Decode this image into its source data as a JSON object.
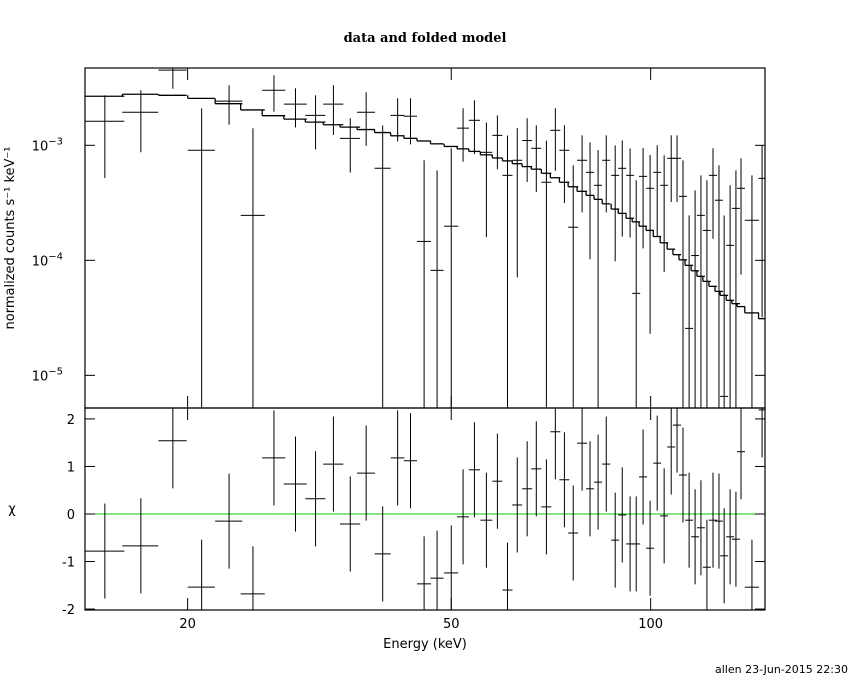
{
  "chart_data": [
    {
      "type": "errorbar",
      "title": "data and folded model",
      "ylabel": "normalized counts s⁻¹ keV⁻¹",
      "xscale": "log",
      "yscale": "log",
      "xlim": [
        14,
        148.8
      ],
      "ylim": [
        5.2e-06,
        0.0047
      ],
      "yticks": [
        {
          "value": 1e-05,
          "label": "10",
          "exponent": "−5"
        },
        {
          "value": 0.0001,
          "label": "10",
          "exponent": "−4"
        },
        {
          "value": 0.001,
          "label": "10",
          "exponent": "−3"
        }
      ],
      "x": [
        15.0,
        17.0,
        19.0,
        21.0,
        23.1,
        25.1,
        27.0,
        29.1,
        31.2,
        33.2,
        35.2,
        37.2,
        39.4,
        41.5,
        43.4,
        45.5,
        47.6,
        50.0,
        52.1,
        54.2,
        56.5,
        58.7,
        60.8,
        62.9,
        65.1,
        67.2,
        69.6,
        71.8,
        74.1,
        76.4,
        78.8,
        81.0,
        83.3,
        85.7,
        88.4,
        90.6,
        93.1,
        95.1,
        97.4,
        99.8,
        102.3,
        104.8,
        107.4,
        109.6,
        111.9,
        114.3,
        116.7,
        119.1,
        121.6,
        124.2,
        126.8,
        129.1,
        131.8,
        134.5,
        136.9,
        142.2,
        147.3
      ],
      "xerr": [
        1.05,
        1.06,
        0.93,
        0.99,
        1.09,
        1.05,
        1.08,
        1.16,
        1.09,
        1.16,
        1.23,
        1.16,
        1.1,
        1.0,
        0.99,
        1.11,
        1.08,
        1.22,
        1.08,
        1.06,
        1.17,
        1.02,
        1.06,
        1.09,
        1.14,
        1.17,
        1.21,
        1.24,
        1.28,
        1.33,
        1.37,
        1.12,
        1.16,
        1.2,
        1.23,
        1.26,
        1.29,
        1.32,
        1.36,
        1.38,
        1.4,
        1.45,
        1.5,
        1.55,
        1.55,
        1.6,
        1.6,
        1.65,
        1.7,
        1.75,
        1.75,
        1.8,
        1.8,
        1.9,
        1.9,
        3.5,
        1.8
      ],
      "data": {
        "color": "#000000",
        "values": [
          0.00162,
          0.00194,
          0.0045,
          0.000905,
          0.00242,
          0.000246,
          0.00301,
          0.00228,
          0.00182,
          0.00228,
          0.00115,
          0.00194,
          0.000631,
          0.00182,
          0.00179,
          0.000146,
          8.18e-05,
          0.000198,
          0.00141,
          0.00165,
          0.000869,
          0.00122,
          0.000548,
          0.000741,
          0.0011,
          0.000942,
          0.000477,
          0.00135,
          0.000905,
          0.000194,
          0.000741,
          0.000582,
          0.000449,
          0.000741,
          0.000548,
          0.000631,
          0.000548,
          5.16e-05,
          0.000537,
          0.000423,
          0.000582,
          0.000449,
          0.000771,
          0.000771,
          0.00036,
          2.56e-05,
          0.00011,
          0.000246,
          0.000182,
          0.000548,
          0.000333,
          6.56e-06,
          0.000135,
          0.000283,
          0.000423,
          0.000223,
          0.000516
        ],
        "errors": [
          0.0011,
          0.00107,
          0.0014,
          0.00119,
          0.00091,
          0.00116,
          0.00105,
          0.00085,
          0.0009,
          0.00105,
          0.00057,
          0.00095,
          0.00086,
          0.00074,
          0.00077,
          0.000595,
          0.000524,
          0.000744,
          0.00069,
          0.00081,
          0.00071,
          0.0006,
          0.00067,
          0.00067,
          0.00062,
          0.00055,
          0.00062,
          0.00075,
          0.00059,
          0.000476,
          0.00048,
          0.00048,
          0.00046,
          0.00048,
          0.00045,
          0.00047,
          0.00039,
          0.000445,
          0.00041,
          0.0004,
          0.00042,
          0.00037,
          0.00045,
          0.00045,
          0.00038,
          0.00022,
          0.000296,
          0.000302,
          0.000315,
          0.000394,
          0.000337,
          0.000239,
          0.000314,
          0.000323,
          0.000348,
          0.000325,
          0.000484
        ]
      },
      "model": {
        "color": "#000000",
        "values": [
          0.00267,
          0.00278,
          0.00272,
          0.00256,
          0.0023,
          0.00203,
          0.00181,
          0.00169,
          0.00159,
          0.00151,
          0.00144,
          0.00137,
          0.00129,
          0.00121,
          0.00115,
          0.00109,
          0.00103,
          0.000977,
          0.000931,
          0.000885,
          0.000826,
          0.000776,
          0.000732,
          0.000692,
          0.000653,
          0.00062,
          0.000571,
          0.000522,
          0.000477,
          0.000436,
          0.000398,
          0.000367,
          0.000339,
          0.00031,
          0.000279,
          0.000256,
          0.000232,
          0.000216,
          0.000198,
          0.000182,
          0.000161,
          0.000142,
          0.000125,
          0.000112,
          0.000101,
          9.04e-05,
          8.11e-05,
          7.26e-05,
          6.56e-05,
          5.94e-05,
          5.37e-05,
          4.96e-05,
          4.49e-05,
          4.2e-05,
          3.96e-05,
          3.49e-05,
          3.11e-05
        ]
      }
    },
    {
      "type": "residual",
      "ylabel": "χ",
      "xlabel": "Energy (keV)",
      "xscale": "log",
      "xlim": [
        14,
        148.8
      ],
      "xticks": [
        20,
        50,
        100
      ],
      "ylim": [
        -2.02,
        2.23
      ],
      "yticks": [
        -2,
        -1,
        0,
        1,
        2
      ],
      "reference_line": {
        "value": 0,
        "color": "#00cc00"
      },
      "color": "#000000",
      "values": [
        -0.78,
        -0.67,
        1.54,
        -1.54,
        -0.15,
        -1.68,
        1.18,
        0.63,
        0.32,
        1.05,
        -0.21,
        0.86,
        -0.84,
        1.18,
        1.12,
        -1.47,
        -1.35,
        -1.24,
        -0.06,
        0.93,
        -0.13,
        0.69,
        -1.6,
        0.19,
        0.53,
        0.95,
        0.15,
        1.73,
        0.72,
        -0.4,
        1.49,
        0.53,
        0.67,
        1.05,
        -0.55,
        -0.02,
        -0.63,
        -0.63,
        0.78,
        -0.72,
        1.07,
        -0.04,
        1.41,
        1.87,
        0.82,
        -0.13,
        -0.48,
        -0.29,
        -1.12,
        -0.13,
        -0.15,
        -0.88,
        -0.48,
        -0.53,
        1.31,
        -1.54,
        2.19
      ],
      "errors": [
        1,
        1,
        1,
        1,
        1,
        1,
        1,
        1,
        1,
        1,
        1,
        1,
        1,
        1,
        1,
        1,
        1,
        1,
        1,
        1,
        1,
        1,
        1,
        1,
        1,
        1,
        1,
        1,
        1,
        1,
        1,
        1,
        1,
        1,
        1,
        1,
        1,
        1,
        1,
        1,
        1,
        1,
        1,
        1,
        1,
        1,
        1,
        1,
        1,
        1,
        1,
        1,
        1,
        1,
        1,
        1,
        1
      ]
    }
  ],
  "footer": "allen 23-Jun-2015 22:30"
}
